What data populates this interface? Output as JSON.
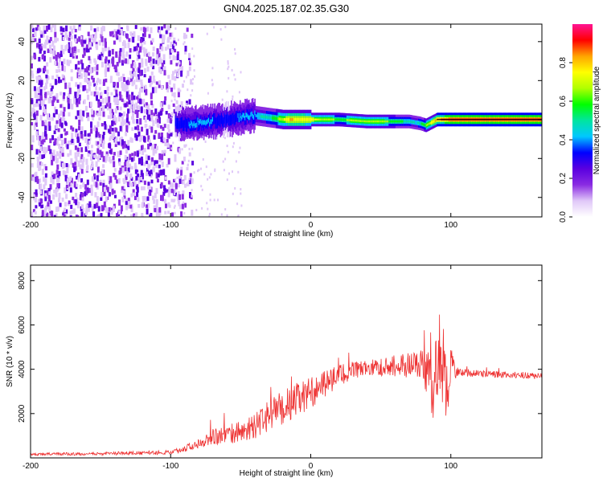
{
  "title": "GN04.2025.187.02.35.G30",
  "chart_data": [
    {
      "type": "heatmap",
      "xlabel": "Height of straight line (km)",
      "ylabel": "Frequency (Hz)",
      "xlim": [
        -200,
        165
      ],
      "ylim": [
        -50,
        49
      ],
      "xticks": [
        -200,
        -100,
        0,
        100
      ],
      "yticks": [
        -40,
        -20,
        0,
        20,
        40
      ],
      "colorbar": {
        "label": "Normalized spectral amplitude",
        "range": [
          0,
          1
        ],
        "ticks": [
          "0.0",
          "0.2",
          "0.4",
          "0.6",
          "0.8"
        ],
        "colormap": [
          "#ffffff",
          "#e0c8f8",
          "#8a2be2",
          "#5a00e0",
          "#0000ff",
          "#00c8ff",
          "#00e5a0",
          "#00ff00",
          "#b0ff00",
          "#ffff00",
          "#ffa500",
          "#ff0000",
          "#ff1493"
        ]
      },
      "signal_band": {
        "center_hz": [
          [
            -95,
            -2
          ],
          [
            -85,
            -2
          ],
          [
            -70,
            -1
          ],
          [
            -50,
            1
          ],
          [
            -40,
            2
          ],
          [
            -30,
            1
          ],
          [
            -20,
            0
          ],
          [
            0,
            0
          ],
          [
            20,
            0
          ],
          [
            40,
            -1
          ],
          [
            60,
            -1
          ],
          [
            70,
            -1
          ],
          [
            78,
            -2
          ],
          [
            82,
            -3
          ],
          [
            90,
            0
          ],
          [
            100,
            0
          ],
          [
            120,
            0
          ],
          [
            165,
            0
          ]
        ],
        "peak_amplitude_by_km": [
          [
            -95,
            0.35
          ],
          [
            -80,
            0.4
          ],
          [
            -60,
            0.35
          ],
          [
            -45,
            0.4
          ],
          [
            -30,
            0.5
          ],
          [
            -15,
            0.8
          ],
          [
            0,
            0.75
          ],
          [
            20,
            0.6
          ],
          [
            40,
            0.7
          ],
          [
            60,
            0.6
          ],
          [
            75,
            0.45
          ],
          [
            90,
            0.85
          ],
          [
            100,
            0.95
          ],
          [
            120,
            0.95
          ],
          [
            165,
            0.95
          ]
        ]
      }
    },
    {
      "type": "line",
      "xlabel": "Height of straight line (km)",
      "ylabel": "SNR (10 * v/v)",
      "xlim": [
        -200,
        165
      ],
      "ylim": [
        0,
        8700
      ],
      "xticks": [
        -200,
        -100,
        0,
        100
      ],
      "yticks": [
        2000,
        4000,
        6000,
        8000
      ],
      "series": [
        {
          "color": "#ee3333",
          "x": [
            -200,
            -180,
            -160,
            -140,
            -120,
            -100,
            -90,
            -80,
            -70,
            -60,
            -50,
            -40,
            -30,
            -20,
            -10,
            0,
            10,
            20,
            30,
            40,
            50,
            60,
            70,
            75,
            80,
            85,
            88,
            92,
            96,
            100,
            105,
            110,
            120,
            140,
            165
          ],
          "y": [
            150,
            180,
            170,
            200,
            220,
            250,
            400,
            700,
            1000,
            1000,
            1200,
            1400,
            1900,
            2300,
            2600,
            2950,
            3300,
            3700,
            3950,
            4050,
            4100,
            4150,
            4200,
            4250,
            4300,
            3400,
            3500,
            5000,
            3000,
            4200,
            3900,
            3850,
            3800,
            3750,
            3700
          ],
          "noise": [
            50,
            70,
            60,
            80,
            90,
            100,
            150,
            250,
            400,
            450,
            500,
            550,
            700,
            800,
            800,
            700,
            600,
            500,
            400,
            350,
            400,
            500,
            600,
            600,
            700,
            1400,
            1800,
            2400,
            2200,
            900,
            200,
            180,
            150,
            150,
            150
          ]
        }
      ]
    }
  ]
}
